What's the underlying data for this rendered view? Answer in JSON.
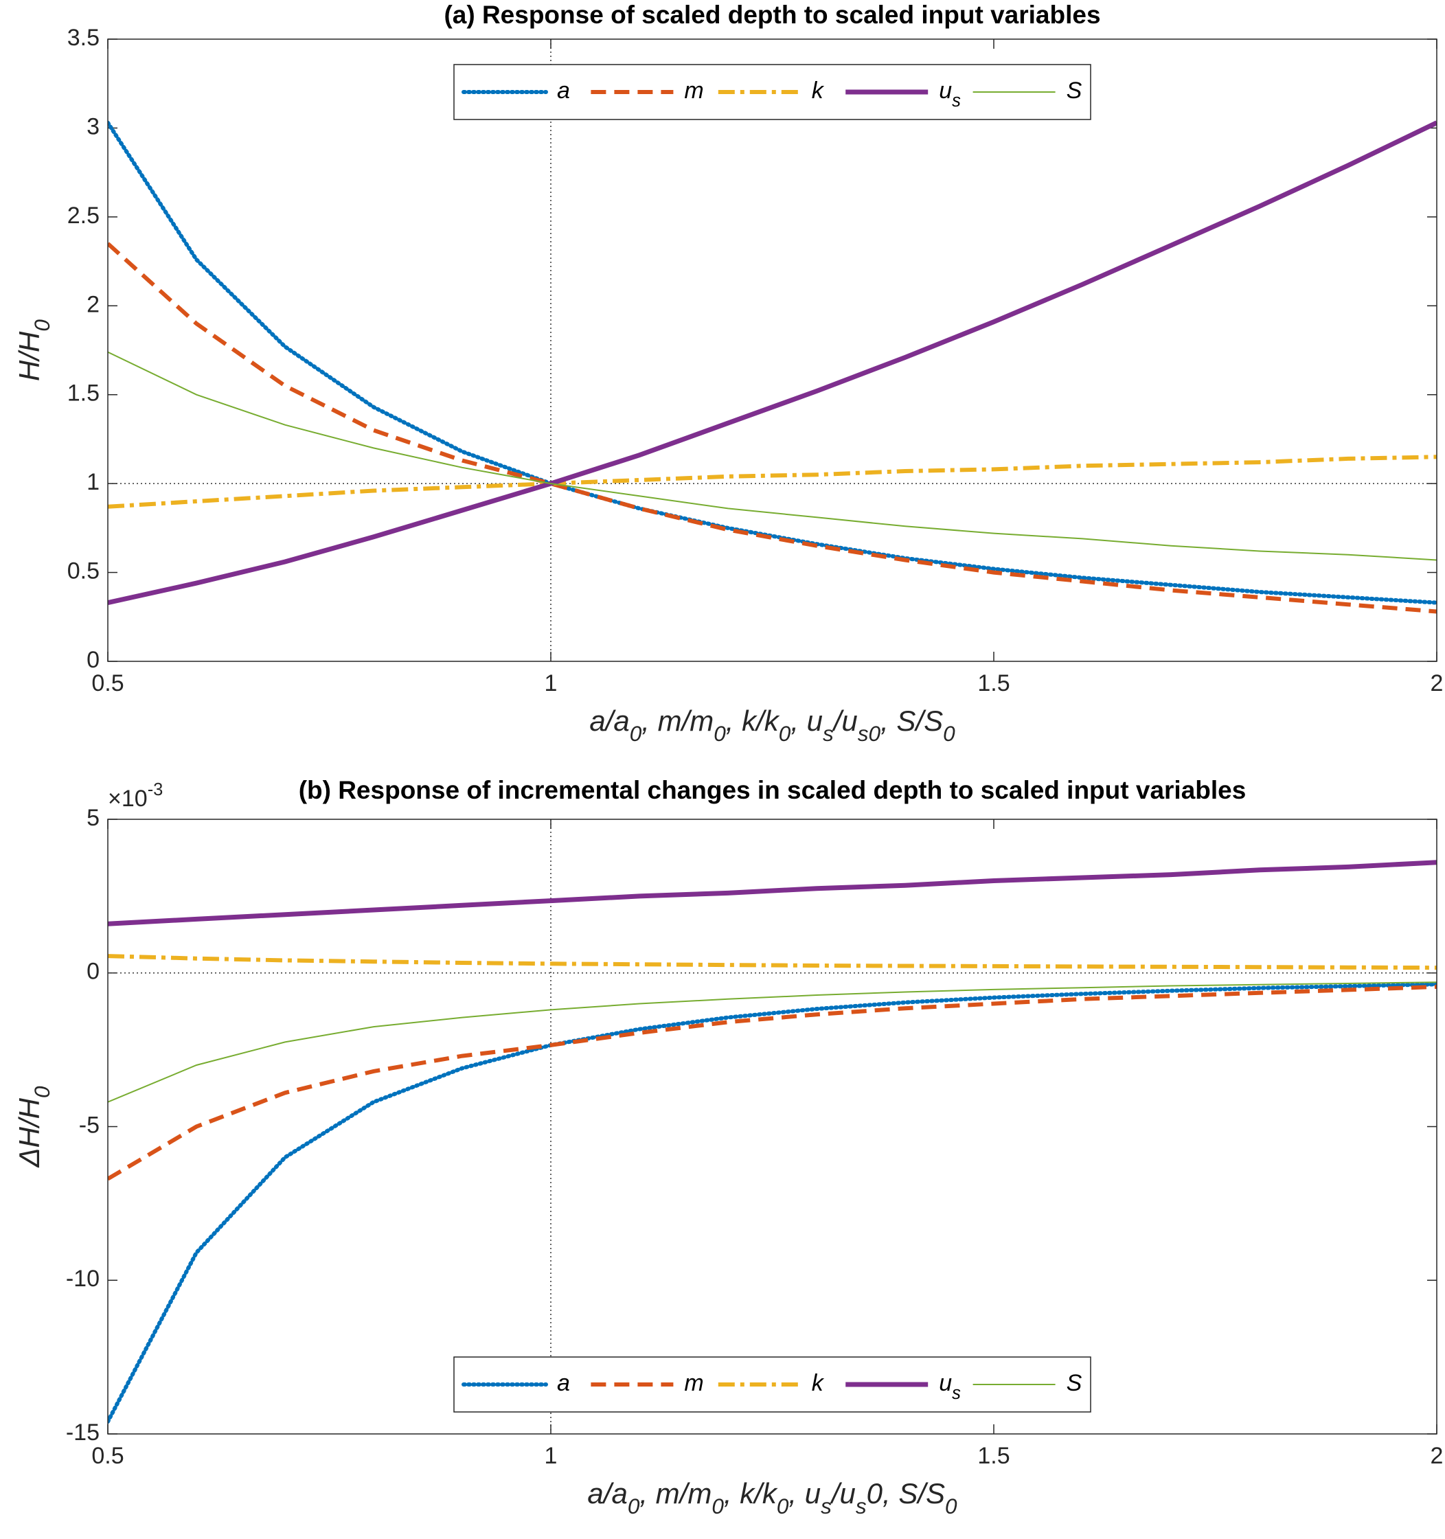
{
  "chart_data": [
    {
      "type": "line",
      "title": "(a) Response of scaled depth to scaled input variables",
      "xlabel": [
        {
          "t": "a/a"
        },
        {
          "sub": "0"
        },
        {
          "t": ", m/m"
        },
        {
          "sub": "0"
        },
        {
          "t": ", k/k"
        },
        {
          "sub": "0"
        },
        {
          "t": ", u"
        },
        {
          "sub": "s"
        },
        {
          "t": "/u"
        },
        {
          "sub": "s0"
        },
        {
          "t": ", S/S"
        },
        {
          "sub": "0"
        }
      ],
      "ylabel": [
        {
          "t": "H/H"
        },
        {
          "sub": "0"
        }
      ],
      "x": [
        0.5,
        0.6,
        0.7,
        0.8,
        0.9,
        1.0,
        1.1,
        1.2,
        1.3,
        1.4,
        1.5,
        1.6,
        1.7,
        1.8,
        1.9,
        2.0
      ],
      "xlim": [
        0.5,
        2
      ],
      "xticks": [
        0.5,
        1,
        1.5,
        2
      ],
      "ylim": [
        0,
        3.5
      ],
      "yticks": [
        0,
        0.5,
        1,
        1.5,
        2,
        2.5,
        3,
        3.5
      ],
      "reference_lines": {
        "x": 1,
        "y": 1
      },
      "legend": "north",
      "series": [
        {
          "name": "a",
          "color": "#0072BD",
          "style": "dotted",
          "values": [
            3.03,
            2.26,
            1.77,
            1.43,
            1.18,
            1,
            0.86,
            0.75,
            0.66,
            0.58,
            0.52,
            0.47,
            0.43,
            0.39,
            0.36,
            0.33
          ]
        },
        {
          "name": "m",
          "color": "#D95319",
          "style": "dashed",
          "values": [
            2.35,
            1.9,
            1.55,
            1.3,
            1.13,
            1,
            0.86,
            0.74,
            0.65,
            0.57,
            0.5,
            0.45,
            0.4,
            0.36,
            0.32,
            0.28
          ]
        },
        {
          "name": "k",
          "color": "#EDB120",
          "style": "dashdot",
          "values": [
            0.87,
            0.9,
            0.93,
            0.96,
            0.98,
            1,
            1.02,
            1.04,
            1.05,
            1.07,
            1.08,
            1.1,
            1.11,
            1.12,
            1.14,
            1.15
          ]
        },
        {
          "name": [
            {
              "t": "u"
            },
            {
              "sub": "s"
            }
          ],
          "color": "#7E2F8E",
          "style": "thick",
          "values": [
            0.33,
            0.44,
            0.56,
            0.7,
            0.85,
            1,
            1.16,
            1.34,
            1.52,
            1.71,
            1.91,
            2.12,
            2.34,
            2.56,
            2.79,
            3.03
          ]
        },
        {
          "name": "S",
          "color": "#77AC30",
          "style": "thin",
          "values": [
            1.74,
            1.5,
            1.33,
            1.2,
            1.09,
            1,
            0.93,
            0.86,
            0.81,
            0.76,
            0.72,
            0.69,
            0.65,
            0.62,
            0.6,
            0.57
          ]
        }
      ]
    },
    {
      "type": "line",
      "title": "(b) Response of incremental changes in scaled depth to scaled input variables",
      "exponent": [
        {
          "t": "×10"
        },
        {
          "sup": "-3"
        }
      ],
      "xlabel": [
        {
          "t": "a/a"
        },
        {
          "sub": "0"
        },
        {
          "t": ", m/m"
        },
        {
          "sub": "0"
        },
        {
          "t": ", k/k"
        },
        {
          "sub": "0"
        },
        {
          "t": ", u"
        },
        {
          "sub": "s"
        },
        {
          "t": "/u"
        },
        {
          "sub": "s"
        },
        {
          "t": "0, S/S"
        },
        {
          "sub": "0"
        }
      ],
      "ylabel": [
        {
          "t": "ΔH/H"
        },
        {
          "sub": "0"
        }
      ],
      "x": [
        0.5,
        0.6,
        0.7,
        0.8,
        0.9,
        1.0,
        1.1,
        1.2,
        1.3,
        1.4,
        1.5,
        1.6,
        1.7,
        1.8,
        1.9,
        2.0
      ],
      "xlim": [
        0.5,
        2
      ],
      "xticks": [
        0.5,
        1,
        1.5,
        2
      ],
      "ylim": [
        -15,
        5
      ],
      "yticks": [
        -15,
        -10,
        -5,
        0,
        5
      ],
      "reference_lines": {
        "x": 1,
        "y": 0
      },
      "legend": "south",
      "series": [
        {
          "name": "a",
          "color": "#0072BD",
          "style": "dotted",
          "values": [
            -14.6,
            -9.1,
            -6.0,
            -4.2,
            -3.1,
            -2.35,
            -1.83,
            -1.45,
            -1.17,
            -0.96,
            -0.8,
            -0.68,
            -0.58,
            -0.49,
            -0.43,
            -0.37
          ]
        },
        {
          "name": "m",
          "color": "#D95319",
          "style": "dashed",
          "values": [
            -6.7,
            -5.0,
            -3.9,
            -3.2,
            -2.7,
            -2.35,
            -1.95,
            -1.6,
            -1.35,
            -1.15,
            -1.0,
            -0.85,
            -0.75,
            -0.65,
            -0.55,
            -0.45
          ]
        },
        {
          "name": "k",
          "color": "#EDB120",
          "style": "dashdot",
          "values": [
            0.55,
            0.47,
            0.41,
            0.37,
            0.33,
            0.3,
            0.28,
            0.26,
            0.24,
            0.23,
            0.22,
            0.21,
            0.2,
            0.19,
            0.18,
            0.17
          ]
        },
        {
          "name": [
            {
              "t": "u"
            },
            {
              "sub": "s"
            }
          ],
          "color": "#7E2F8E",
          "style": "thick",
          "values": [
            1.6,
            1.75,
            1.9,
            2.05,
            2.2,
            2.35,
            2.5,
            2.6,
            2.75,
            2.85,
            3.0,
            3.1,
            3.2,
            3.35,
            3.45,
            3.6
          ]
        },
        {
          "name": "S",
          "color": "#77AC30",
          "style": "thin",
          "values": [
            -4.2,
            -3.0,
            -2.25,
            -1.75,
            -1.45,
            -1.2,
            -1.0,
            -0.85,
            -0.72,
            -0.62,
            -0.54,
            -0.48,
            -0.42,
            -0.38,
            -0.34,
            -0.3
          ]
        }
      ]
    }
  ]
}
